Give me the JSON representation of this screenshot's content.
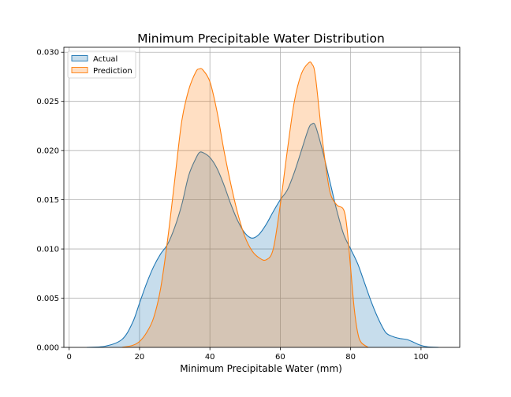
{
  "chart_data": {
    "type": "area",
    "title": "Minimum Precipitable Water Distribution",
    "xlabel": "Minimum Precipitable Water (mm)",
    "ylabel": "",
    "xlim": [
      -1.5,
      111
    ],
    "ylim": [
      0,
      0.0305
    ],
    "x_ticks": [
      0,
      20,
      40,
      60,
      80,
      100
    ],
    "y_ticks": [
      0.0,
      0.005,
      0.01,
      0.015,
      0.02,
      0.025,
      0.03
    ],
    "x_tick_labels": [
      "0",
      "20",
      "40",
      "60",
      "80",
      "100"
    ],
    "y_tick_labels": [
      "0.000",
      "0.005",
      "0.010",
      "0.015",
      "0.020",
      "0.025",
      "0.030"
    ],
    "grid": true,
    "legend_position": "top-left",
    "series": [
      {
        "name": "Actual",
        "line_color": "#1f77b4",
        "fill_color": "#1f77b4",
        "points": [
          [
            5,
            0
          ],
          [
            10,
            0.0001
          ],
          [
            15,
            0.0008
          ],
          [
            18,
            0.0025
          ],
          [
            20,
            0.0045
          ],
          [
            22,
            0.0065
          ],
          [
            24,
            0.0082
          ],
          [
            26,
            0.0095
          ],
          [
            28,
            0.0105
          ],
          [
            30,
            0.0122
          ],
          [
            32,
            0.0145
          ],
          [
            34,
            0.0175
          ],
          [
            36,
            0.0192
          ],
          [
            37,
            0.0198
          ],
          [
            38,
            0.0198
          ],
          [
            40,
            0.0193
          ],
          [
            42,
            0.0182
          ],
          [
            44,
            0.0165
          ],
          [
            46,
            0.0145
          ],
          [
            48,
            0.0128
          ],
          [
            50,
            0.0116
          ],
          [
            52,
            0.0111
          ],
          [
            54,
            0.0115
          ],
          [
            56,
            0.0125
          ],
          [
            58,
            0.0138
          ],
          [
            60,
            0.015
          ],
          [
            62,
            0.016
          ],
          [
            64,
            0.0178
          ],
          [
            66,
            0.02
          ],
          [
            68,
            0.0222
          ],
          [
            69,
            0.0227
          ],
          [
            70,
            0.0225
          ],
          [
            72,
            0.02
          ],
          [
            74,
            0.017
          ],
          [
            76,
            0.014
          ],
          [
            78,
            0.0115
          ],
          [
            80,
            0.01
          ],
          [
            82,
            0.0085
          ],
          [
            84,
            0.0065
          ],
          [
            86,
            0.0045
          ],
          [
            88,
            0.0028
          ],
          [
            90,
            0.0015
          ],
          [
            92,
            0.0011
          ],
          [
            94,
            0.0009
          ],
          [
            96,
            0.0008
          ],
          [
            98,
            0.0005
          ],
          [
            100,
            0.0002
          ],
          [
            102,
            5e-05
          ],
          [
            105,
            0
          ]
        ]
      },
      {
        "name": "Prediction",
        "line_color": "#ff7f0e",
        "fill_color": "#ff7f0e",
        "points": [
          [
            15,
            0
          ],
          [
            18,
            0.0002
          ],
          [
            20,
            0.0006
          ],
          [
            22,
            0.0015
          ],
          [
            24,
            0.003
          ],
          [
            26,
            0.006
          ],
          [
            28,
            0.011
          ],
          [
            30,
            0.017
          ],
          [
            32,
            0.023
          ],
          [
            34,
            0.0262
          ],
          [
            36,
            0.028
          ],
          [
            37,
            0.0283
          ],
          [
            38,
            0.0282
          ],
          [
            40,
            0.027
          ],
          [
            42,
            0.024
          ],
          [
            44,
            0.02
          ],
          [
            46,
            0.0165
          ],
          [
            48,
            0.0135
          ],
          [
            50,
            0.0112
          ],
          [
            52,
            0.0098
          ],
          [
            54,
            0.0091
          ],
          [
            56,
            0.0089
          ],
          [
            58,
            0.01
          ],
          [
            60,
            0.0145
          ],
          [
            62,
            0.02
          ],
          [
            64,
            0.025
          ],
          [
            66,
            0.0278
          ],
          [
            68,
            0.0289
          ],
          [
            69,
            0.0288
          ],
          [
            70,
            0.0275
          ],
          [
            72,
            0.021
          ],
          [
            74,
            0.016
          ],
          [
            76,
            0.0145
          ],
          [
            78,
            0.014
          ],
          [
            79,
            0.012
          ],
          [
            80,
            0.008
          ],
          [
            81,
            0.004
          ],
          [
            82,
            0.0015
          ],
          [
            83,
            0.0005
          ],
          [
            85,
            0
          ]
        ]
      }
    ]
  }
}
